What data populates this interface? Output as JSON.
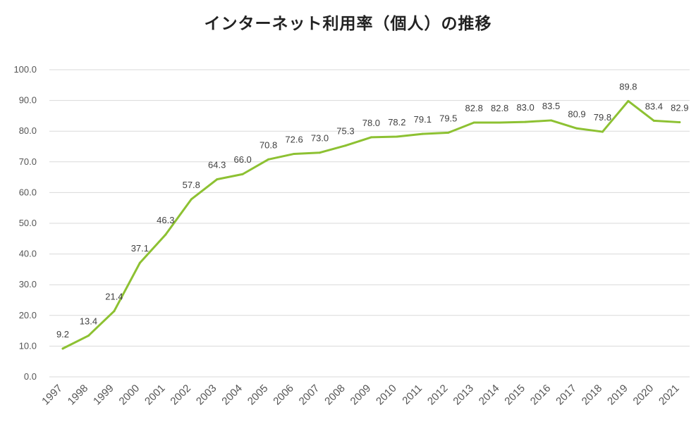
{
  "chart_data": {
    "type": "line",
    "title": "インターネット利用率（個人）の推移",
    "xlabel": "",
    "ylabel": "",
    "ylim": [
      0,
      100
    ],
    "y_ticks": [
      "0.0",
      "10.0",
      "20.0",
      "30.0",
      "40.0",
      "50.0",
      "60.0",
      "70.0",
      "80.0",
      "90.0",
      "100.0"
    ],
    "grid": true,
    "legend": "none",
    "categories": [
      "1997",
      "1998",
      "1999",
      "2000",
      "2001",
      "2002",
      "2003",
      "2004",
      "2005",
      "2006",
      "2007",
      "2008",
      "2009",
      "2010",
      "2011",
      "2012",
      "2013",
      "2014",
      "2015",
      "2016",
      "2017",
      "2018",
      "2019",
      "2020",
      "2021"
    ],
    "series": [
      {
        "values": [
          9.2,
          13.4,
          21.4,
          37.1,
          46.3,
          57.8,
          64.3,
          66.0,
          70.8,
          72.6,
          73.0,
          75.3,
          78.0,
          78.2,
          79.1,
          79.5,
          82.8,
          82.8,
          83.0,
          83.5,
          80.9,
          79.8,
          89.8,
          83.4,
          82.9
        ],
        "labels": [
          "9.2",
          "13.4",
          "21.4",
          "37.1",
          "46.3",
          "57.8",
          "64.3",
          "66.0",
          "70.8",
          "72.6",
          "73.0",
          "75.3",
          "78.0",
          "78.2",
          "79.1",
          "79.5",
          "82.8",
          "82.8",
          "83.0",
          "83.5",
          "80.9",
          "79.8",
          "89.8",
          "83.4",
          "82.9"
        ],
        "color": "#8dc132"
      }
    ],
    "colors": {
      "gridline": "#d9d9d9",
      "text": "#555555",
      "title": "#222222"
    }
  }
}
